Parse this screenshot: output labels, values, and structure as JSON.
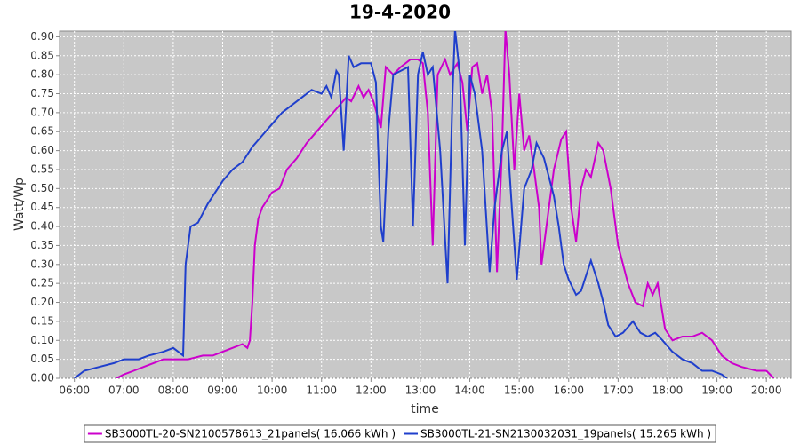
{
  "chart_data": {
    "type": "line",
    "title": "19-4-2020",
    "x_label": "time",
    "y_label": "Watt/Wp",
    "xlim": [
      5.7,
      20.5
    ],
    "xticks": [
      {
        "value": 6,
        "label": "06:00"
      },
      {
        "value": 7,
        "label": "07:00"
      },
      {
        "value": 8,
        "label": "08:00"
      },
      {
        "value": 9,
        "label": "09:00"
      },
      {
        "value": 10,
        "label": "10:00"
      },
      {
        "value": 11,
        "label": "11:00"
      },
      {
        "value": 12,
        "label": "12:00"
      },
      {
        "value": 13,
        "label": "13:00"
      },
      {
        "value": 14,
        "label": "14:00"
      },
      {
        "value": 15,
        "label": "15:00"
      },
      {
        "value": 16,
        "label": "16:00"
      },
      {
        "value": 17,
        "label": "17:00"
      },
      {
        "value": 18,
        "label": "18:00"
      },
      {
        "value": 19,
        "label": "19:00"
      },
      {
        "value": 20,
        "label": "20:00"
      }
    ],
    "ylim": [
      0,
      0.915
    ],
    "yticks": [
      {
        "value": 0,
        "label": "0.00"
      },
      0.05,
      {
        "value": 0.1,
        "label": "0.10"
      },
      0.15,
      {
        "value": 0.2,
        "label": "0.20"
      },
      0.25,
      {
        "value": 0.3,
        "label": "0.30"
      },
      0.35,
      {
        "value": 0.4,
        "label": "0.40"
      },
      0.45,
      {
        "value": 0.5,
        "label": "0.50"
      },
      0.55,
      {
        "value": 0.6,
        "label": "0.60"
      },
      0.65,
      {
        "value": 0.7,
        "label": "0.70"
      },
      0.75,
      {
        "value": 0.8,
        "label": "0.80"
      },
      0.85,
      {
        "value": 0.9,
        "label": "0.90"
      }
    ],
    "grid": true,
    "series": [
      {
        "name": "SB3000TL-20-SN2100578613_21panels( 16.066 kWh )",
        "color": "#cc00cc",
        "x": [
          6.85,
          7.0,
          7.2,
          7.4,
          7.6,
          7.8,
          8.0,
          8.3,
          8.6,
          8.8,
          9.0,
          9.2,
          9.4,
          9.5,
          9.55,
          9.6,
          9.65,
          9.72,
          9.8,
          10.0,
          10.15,
          10.3,
          10.5,
          10.7,
          10.9,
          11.1,
          11.3,
          11.5,
          11.6,
          11.75,
          11.85,
          11.95,
          12.05,
          12.2,
          12.3,
          12.45,
          12.6,
          12.8,
          12.95,
          13.05,
          13.15,
          13.25,
          13.35,
          13.5,
          13.6,
          13.75,
          13.85,
          13.95,
          14.05,
          14.15,
          14.25,
          14.35,
          14.45,
          14.55,
          14.65,
          14.72,
          14.8,
          14.9,
          15.0,
          15.1,
          15.2,
          15.3,
          15.4,
          15.45,
          15.55,
          15.7,
          15.85,
          15.95,
          16.05,
          16.15,
          16.25,
          16.35,
          16.45,
          16.6,
          16.7,
          16.85,
          17.0,
          17.2,
          17.35,
          17.5,
          17.6,
          17.7,
          17.8,
          17.95,
          18.1,
          18.3,
          18.5,
          18.7,
          18.9,
          19.1,
          19.3,
          19.5,
          19.8,
          20.0,
          20.15
        ],
        "values": [
          0.0,
          0.01,
          0.02,
          0.03,
          0.04,
          0.05,
          0.05,
          0.05,
          0.06,
          0.06,
          0.07,
          0.08,
          0.09,
          0.08,
          0.1,
          0.2,
          0.35,
          0.42,
          0.45,
          0.49,
          0.5,
          0.55,
          0.58,
          0.62,
          0.65,
          0.68,
          0.71,
          0.74,
          0.73,
          0.77,
          0.74,
          0.76,
          0.73,
          0.66,
          0.82,
          0.8,
          0.82,
          0.84,
          0.84,
          0.83,
          0.7,
          0.35,
          0.8,
          0.84,
          0.8,
          0.83,
          0.78,
          0.65,
          0.82,
          0.83,
          0.75,
          0.8,
          0.7,
          0.28,
          0.6,
          0.92,
          0.8,
          0.55,
          0.75,
          0.6,
          0.64,
          0.55,
          0.45,
          0.3,
          0.4,
          0.55,
          0.63,
          0.65,
          0.45,
          0.36,
          0.5,
          0.55,
          0.53,
          0.62,
          0.6,
          0.5,
          0.35,
          0.25,
          0.2,
          0.19,
          0.25,
          0.22,
          0.25,
          0.13,
          0.1,
          0.11,
          0.11,
          0.12,
          0.1,
          0.06,
          0.04,
          0.03,
          0.02,
          0.02,
          0.0
        ]
      },
      {
        "name": "SB3000TL-21-SN2130032031_19panels( 15.265 kWh )",
        "color": "#1f3fcc",
        "x": [
          6.0,
          6.2,
          6.5,
          6.8,
          7.0,
          7.3,
          7.5,
          7.8,
          8.0,
          8.1,
          8.2,
          8.25,
          8.35,
          8.5,
          8.7,
          9.0,
          9.2,
          9.4,
          9.6,
          9.8,
          10.0,
          10.2,
          10.4,
          10.6,
          10.8,
          11.0,
          11.1,
          11.2,
          11.3,
          11.35,
          11.45,
          11.55,
          11.65,
          11.8,
          12.0,
          12.1,
          12.2,
          12.25,
          12.35,
          12.45,
          12.6,
          12.75,
          12.85,
          12.95,
          13.05,
          13.15,
          13.25,
          13.4,
          13.55,
          13.65,
          13.7,
          13.8,
          13.9,
          14.0,
          14.1,
          14.25,
          14.4,
          14.5,
          14.65,
          14.75,
          14.85,
          14.95,
          15.1,
          15.25,
          15.35,
          15.5,
          15.7,
          15.8,
          15.9,
          16.0,
          16.15,
          16.25,
          16.4,
          16.45,
          16.6,
          16.7,
          16.8,
          16.95,
          17.1,
          17.3,
          17.45,
          17.6,
          17.75,
          17.9,
          18.1,
          18.3,
          18.5,
          18.7,
          18.9,
          19.1,
          19.2
        ],
        "values": [
          0.0,
          0.02,
          0.03,
          0.04,
          0.05,
          0.05,
          0.06,
          0.07,
          0.08,
          0.07,
          0.06,
          0.3,
          0.4,
          0.41,
          0.46,
          0.52,
          0.55,
          0.57,
          0.61,
          0.64,
          0.67,
          0.7,
          0.72,
          0.74,
          0.76,
          0.75,
          0.77,
          0.74,
          0.81,
          0.8,
          0.6,
          0.85,
          0.82,
          0.83,
          0.83,
          0.78,
          0.4,
          0.36,
          0.65,
          0.8,
          0.81,
          0.82,
          0.4,
          0.8,
          0.86,
          0.8,
          0.82,
          0.6,
          0.25,
          0.75,
          0.92,
          0.8,
          0.35,
          0.8,
          0.75,
          0.6,
          0.28,
          0.45,
          0.6,
          0.65,
          0.45,
          0.26,
          0.5,
          0.55,
          0.62,
          0.58,
          0.48,
          0.4,
          0.3,
          0.26,
          0.22,
          0.23,
          0.29,
          0.31,
          0.25,
          0.2,
          0.14,
          0.11,
          0.12,
          0.15,
          0.12,
          0.11,
          0.12,
          0.1,
          0.07,
          0.05,
          0.04,
          0.02,
          0.02,
          0.01,
          0.0
        ]
      }
    ]
  }
}
